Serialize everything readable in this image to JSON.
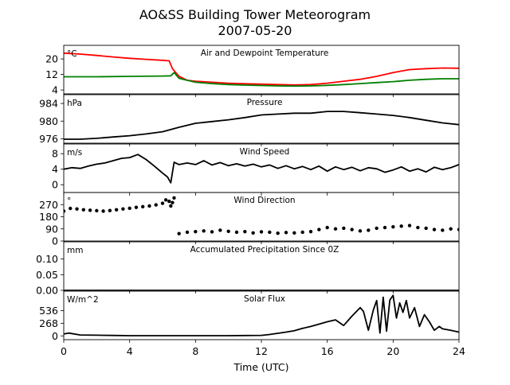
{
  "figure": {
    "title": "AO&SS Building Tower Meteorogram",
    "subtitle": "2007-05-20"
  },
  "chart_data": [
    {
      "type": "line",
      "title": "Air and Dewpoint Temperature",
      "unit": "°C",
      "ylim": [
        2,
        27
      ],
      "yticks": [
        4,
        12,
        20
      ],
      "series": [
        {
          "color": "#ff0000",
          "x": [
            0,
            1,
            2,
            3,
            4,
            5,
            6,
            6.4,
            6.6,
            7,
            7.5,
            8,
            9,
            10,
            11,
            12,
            13,
            14,
            15,
            16,
            17,
            18,
            19,
            20,
            21,
            22,
            23,
            24
          ],
          "y": [
            23,
            22.5,
            21.8,
            21,
            20.3,
            19.8,
            19.3,
            19,
            15,
            11,
            9,
            8.5,
            8,
            7.5,
            7.2,
            7,
            6.8,
            6.6,
            6.8,
            7.5,
            8.5,
            9.5,
            11,
            13,
            14.5,
            15,
            15.3,
            15.2
          ]
        },
        {
          "color": "#008000",
          "x": [
            0,
            2,
            4,
            6,
            6.5,
            6.7,
            7,
            8,
            9,
            10,
            11,
            12,
            13,
            14,
            15,
            16,
            17,
            18,
            19,
            20,
            21,
            22,
            23,
            24
          ],
          "y": [
            10.8,
            10.8,
            11,
            11.2,
            11.3,
            13,
            10,
            8,
            7.3,
            6.8,
            6.5,
            6.3,
            6.1,
            6,
            6.1,
            6.4,
            6.8,
            7.3,
            7.8,
            8.3,
            9,
            9.5,
            9.8,
            9.8
          ]
        }
      ]
    },
    {
      "type": "line",
      "title": "Pressure",
      "unit": "hPa",
      "ylim": [
        975,
        986
      ],
      "yticks": [
        976,
        980,
        984
      ],
      "series": [
        {
          "color": "#000000",
          "x": [
            0,
            1,
            2,
            3,
            4,
            5,
            6,
            7,
            8,
            9,
            10,
            11,
            12,
            13,
            14,
            15,
            16,
            17,
            18,
            19,
            20,
            21,
            22,
            23,
            24
          ],
          "y": [
            975.9,
            975.9,
            976.1,
            976.4,
            976.7,
            977.1,
            977.6,
            978.6,
            979.5,
            979.9,
            980.3,
            980.8,
            981.4,
            981.6,
            981.8,
            981.8,
            982.2,
            982.2,
            981.9,
            981.6,
            981.3,
            980.8,
            980.2,
            979.6,
            979.2
          ]
        }
      ]
    },
    {
      "type": "line",
      "title": "Wind Speed",
      "unit": "m/s",
      "ylim": [
        -2,
        10.5
      ],
      "yticks": [
        0,
        4,
        8
      ],
      "series": [
        {
          "color": "#000000",
          "x": [
            0,
            0.5,
            1,
            1.5,
            2,
            2.5,
            3,
            3.5,
            4,
            4.5,
            5,
            5.5,
            6,
            6.3,
            6.5,
            6.7,
            7,
            7.5,
            8,
            8.5,
            9,
            9.5,
            10,
            10.5,
            11,
            11.5,
            12,
            12.5,
            13,
            13.5,
            14,
            14.5,
            15,
            15.5,
            16,
            16.5,
            17,
            17.5,
            18,
            18.5,
            19,
            19.5,
            20,
            20.5,
            21,
            21.5,
            22,
            22.5,
            23,
            23.5,
            24
          ],
          "y": [
            4,
            4.4,
            4.2,
            4.8,
            5.3,
            5.6,
            6.2,
            6.8,
            7,
            7.8,
            6.5,
            4.8,
            3,
            2,
            0.5,
            5.8,
            5.2,
            5.6,
            5.2,
            6.2,
            5.1,
            5.7,
            4.9,
            5.4,
            4.8,
            5.3,
            4.6,
            5.1,
            4.2,
            4.9,
            4.1,
            4.7,
            3.9,
            4.8,
            3.5,
            4.6,
            3.9,
            4.5,
            3.6,
            4.4,
            4.1,
            3.2,
            3.8,
            4.6,
            3.5,
            4.1,
            3.3,
            4.5,
            3.9,
            4.4,
            5.2
          ]
        }
      ]
    },
    {
      "type": "scatter",
      "title": "Wind Direction",
      "unit": "°",
      "ylim": [
        0,
        360
      ],
      "yticks": [
        0,
        90,
        180,
        270
      ],
      "series": [
        {
          "color": "#000000",
          "x": [
            0,
            0.4,
            0.8,
            1.2,
            1.6,
            2,
            2.4,
            2.8,
            3.2,
            3.6,
            4,
            4.4,
            4.8,
            5.2,
            5.6,
            6,
            6.2,
            6.4,
            6.5,
            6.6,
            6.7,
            7,
            7.5,
            8,
            8.5,
            9,
            9.5,
            10,
            10.5,
            11,
            11.5,
            12,
            12.5,
            13,
            13.5,
            14,
            14.5,
            15,
            15.5,
            16,
            16.5,
            17,
            17.5,
            18,
            18.5,
            19,
            19.5,
            20,
            20.5,
            21,
            21.5,
            22,
            22.5,
            23,
            23.5,
            24
          ],
          "y": [
            222,
            242,
            238,
            232,
            228,
            225,
            222,
            226,
            232,
            238,
            243,
            250,
            255,
            260,
            268,
            280,
            305,
            295,
            260,
            285,
            320,
            55,
            65,
            70,
            75,
            68,
            80,
            72,
            65,
            70,
            60,
            68,
            65,
            58,
            63,
            60,
            65,
            70,
            85,
            100,
            90,
            95,
            85,
            75,
            80,
            95,
            100,
            105,
            110,
            115,
            100,
            95,
            85,
            80,
            90,
            85
          ]
        }
      ]
    },
    {
      "type": "line",
      "title": "Accumulated Precipitation Since 0Z",
      "unit": "mm",
      "ylim": [
        0,
        0.155
      ],
      "yticks": [
        0.0,
        0.05,
        0.1
      ],
      "ytick_labels": [
        "0.00",
        "0.05",
        "0.10"
      ],
      "series": [
        {
          "color": "#000000",
          "x": [
            0,
            24
          ],
          "y": [
            0,
            0
          ]
        }
      ]
    },
    {
      "type": "line",
      "title": "Solar Flux",
      "unit": "W/m^2",
      "ylim": [
        -80,
        950
      ],
      "yticks": [
        0,
        268,
        536
      ],
      "series": [
        {
          "color": "#000000",
          "x": [
            0,
            0.3,
            1,
            2,
            3,
            4,
            5,
            6,
            7,
            8,
            9,
            10,
            11,
            12,
            12.5,
            13,
            13.5,
            14,
            14.5,
            15,
            15.5,
            16,
            16.5,
            17,
            17.5,
            18,
            18.2,
            18.5,
            18.8,
            19,
            19.2,
            19.4,
            19.6,
            19.8,
            20,
            20.2,
            20.4,
            20.6,
            20.8,
            21,
            21.3,
            21.6,
            21.9,
            22.2,
            22.5,
            22.8,
            23,
            23.5,
            24
          ],
          "y": [
            40,
            60,
            20,
            15,
            10,
            5,
            5,
            5,
            5,
            5,
            5,
            5,
            8,
            12,
            30,
            55,
            80,
            110,
            160,
            200,
            250,
            300,
            340,
            220,
            420,
            600,
            520,
            120,
            550,
            750,
            60,
            820,
            100,
            760,
            860,
            380,
            700,
            500,
            750,
            380,
            600,
            200,
            450,
            300,
            120,
            200,
            150,
            120,
            80
          ]
        }
      ]
    }
  ],
  "xaxis": {
    "label": "Time (UTC)",
    "xlim": [
      0,
      24
    ],
    "ticks": [
      0,
      4,
      8,
      12,
      16,
      20,
      24
    ]
  }
}
